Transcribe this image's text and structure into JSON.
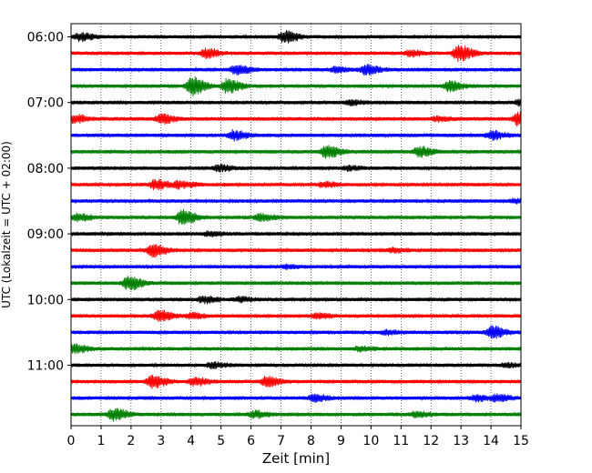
{
  "chart_data": {
    "type": "line",
    "title": "",
    "xlabel": "Zeit  [min]",
    "ylabel": "UTC (Lokalzeit = UTC + 02:00)",
    "xlim": [
      0,
      15
    ],
    "x_ticks": [
      "0",
      "1",
      "2",
      "3",
      "4",
      "5",
      "6",
      "7",
      "8",
      "9",
      "10",
      "11",
      "12",
      "13",
      "14",
      "15"
    ],
    "y_tick_labels": [
      "06:00",
      "07:00",
      "08:00",
      "09:00",
      "10:00",
      "11:00"
    ],
    "minutes_per_trace": 15,
    "grid": "vertical dotted at each minute",
    "trace_colors": [
      "#000000",
      "#ff0000",
      "#0000ff",
      "#008000"
    ],
    "traces": [
      {
        "start": "06:00",
        "color": "#000000",
        "events": [
          {
            "t": 0.3,
            "amp": 0.55
          },
          {
            "t": 7.1,
            "amp": 0.8
          }
        ]
      },
      {
        "start": "06:15",
        "color": "#ff0000",
        "events": [
          {
            "t": 4.5,
            "amp": 0.7
          },
          {
            "t": 11.3,
            "amp": 0.4
          },
          {
            "t": 12.9,
            "amp": 1.2
          }
        ]
      },
      {
        "start": "06:30",
        "color": "#0000ff",
        "events": [
          {
            "t": 5.5,
            "amp": 0.7
          },
          {
            "t": 8.8,
            "amp": 0.35
          },
          {
            "t": 9.8,
            "amp": 0.75
          }
        ]
      },
      {
        "start": "06:45",
        "color": "#008000",
        "events": [
          {
            "t": 4.0,
            "amp": 1.4
          },
          {
            "t": 5.2,
            "amp": 1.0
          },
          {
            "t": 12.6,
            "amp": 0.7
          }
        ]
      },
      {
        "start": "07:00",
        "color": "#000000",
        "events": [
          {
            "t": 9.3,
            "amp": 0.35
          },
          {
            "t": 15.0,
            "amp": 0.5
          }
        ]
      },
      {
        "start": "07:15",
        "color": "#ff0000",
        "events": [
          {
            "t": 0.1,
            "amp": 0.6
          },
          {
            "t": 3.0,
            "amp": 0.7
          },
          {
            "t": 12.2,
            "amp": 0.35
          },
          {
            "t": 14.9,
            "amp": 1.0
          }
        ]
      },
      {
        "start": "07:30",
        "color": "#0000ff",
        "events": [
          {
            "t": 5.4,
            "amp": 0.7
          },
          {
            "t": 14.0,
            "amp": 0.6
          }
        ]
      },
      {
        "start": "07:45",
        "color": "#008000",
        "events": [
          {
            "t": 8.5,
            "amp": 0.9
          },
          {
            "t": 11.6,
            "amp": 0.7
          }
        ]
      },
      {
        "start": "08:00",
        "color": "#000000",
        "events": [
          {
            "t": 4.9,
            "amp": 0.45
          },
          {
            "t": 9.2,
            "amp": 0.3
          }
        ]
      },
      {
        "start": "08:15",
        "color": "#ff0000",
        "events": [
          {
            "t": 2.8,
            "amp": 0.7
          },
          {
            "t": 3.6,
            "amp": 0.5
          },
          {
            "t": 8.4,
            "amp": 0.35
          }
        ]
      },
      {
        "start": "08:30",
        "color": "#0000ff",
        "events": [
          {
            "t": 14.8,
            "amp": 0.3
          }
        ]
      },
      {
        "start": "08:45",
        "color": "#008000",
        "events": [
          {
            "t": 0.2,
            "amp": 0.5
          },
          {
            "t": 3.7,
            "amp": 1.1
          },
          {
            "t": 6.3,
            "amp": 0.5
          }
        ]
      },
      {
        "start": "09:00",
        "color": "#000000",
        "events": [
          {
            "t": 4.6,
            "amp": 0.35
          }
        ]
      },
      {
        "start": "09:15",
        "color": "#ff0000",
        "events": [
          {
            "t": 2.7,
            "amp": 0.9
          },
          {
            "t": 10.7,
            "amp": 0.3
          }
        ]
      },
      {
        "start": "09:30",
        "color": "#0000ff",
        "events": [
          {
            "t": 7.2,
            "amp": 0.25
          }
        ]
      },
      {
        "start": "09:45",
        "color": "#008000",
        "events": [
          {
            "t": 1.9,
            "amp": 1.0
          }
        ]
      },
      {
        "start": "10:00",
        "color": "#000000",
        "events": [
          {
            "t": 4.4,
            "amp": 0.5
          },
          {
            "t": 5.6,
            "amp": 0.35
          }
        ]
      },
      {
        "start": "10:15",
        "color": "#ff0000",
        "events": [
          {
            "t": 2.9,
            "amp": 0.8
          },
          {
            "t": 4.0,
            "amp": 0.4
          },
          {
            "t": 8.2,
            "amp": 0.35
          }
        ]
      },
      {
        "start": "10:30",
        "color": "#0000ff",
        "events": [
          {
            "t": 14.0,
            "amp": 0.9
          },
          {
            "t": 10.5,
            "amp": 0.3
          }
        ]
      },
      {
        "start": "10:45",
        "color": "#008000",
        "events": [
          {
            "t": 0.1,
            "amp": 0.6
          },
          {
            "t": 9.6,
            "amp": 0.3
          }
        ]
      },
      {
        "start": "11:00",
        "color": "#000000",
        "events": [
          {
            "t": 4.7,
            "amp": 0.4
          },
          {
            "t": 14.5,
            "amp": 0.3
          }
        ]
      },
      {
        "start": "11:15",
        "color": "#ff0000",
        "events": [
          {
            "t": 2.7,
            "amp": 0.9
          },
          {
            "t": 4.1,
            "amp": 0.6
          },
          {
            "t": 6.5,
            "amp": 0.7
          }
        ]
      },
      {
        "start": "11:30",
        "color": "#0000ff",
        "events": [
          {
            "t": 8.1,
            "amp": 0.5
          },
          {
            "t": 13.5,
            "amp": 0.45
          },
          {
            "t": 14.2,
            "amp": 0.45
          }
        ]
      },
      {
        "start": "11:45",
        "color": "#008000",
        "events": [
          {
            "t": 1.4,
            "amp": 0.9
          },
          {
            "t": 6.1,
            "amp": 0.5
          },
          {
            "t": 11.5,
            "amp": 0.4
          }
        ]
      }
    ]
  }
}
